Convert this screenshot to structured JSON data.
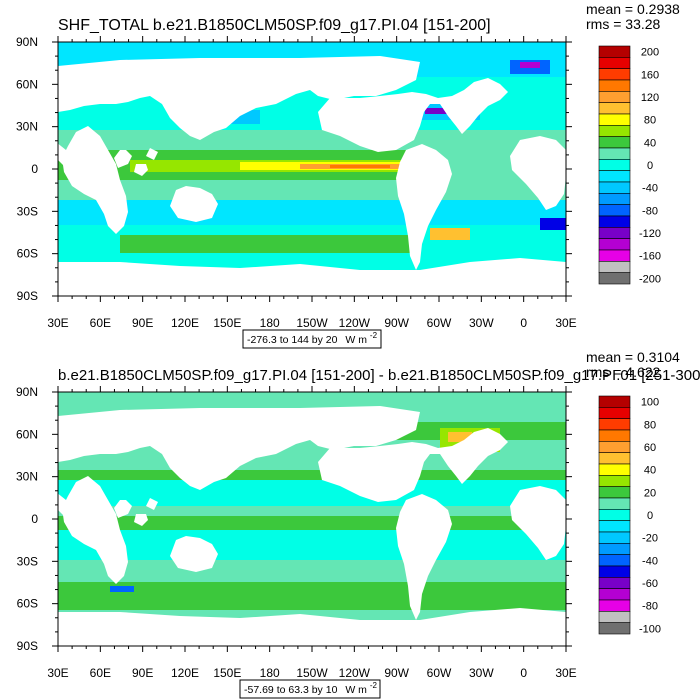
{
  "chart_data": [
    {
      "type": "heatmap",
      "title": "SHF_TOTAL b.e21.B1850CLM50SP.f09_g17.PI.04 [151-200]",
      "stats": [
        "mean = 0.2938",
        "rms = 33.28"
      ],
      "x_ticks": [
        "30E",
        "60E",
        "90E",
        "120E",
        "150E",
        "180",
        "150W",
        "120W",
        "90W",
        "60W",
        "30W",
        "0",
        "30E"
      ],
      "y_ticks": [
        "90N",
        "60N",
        "30N",
        "0",
        "30S",
        "60S",
        "90S"
      ],
      "xlim": [
        30,
        390
      ],
      "ylim": [
        -90,
        90
      ],
      "range_label": "-276.3 to 144 by 20",
      "units_label": "W m",
      "units_exponent": "-2",
      "colorbar": {
        "labels": [
          "200",
          "160",
          "120",
          "80",
          "40",
          "0",
          "-40",
          "-80",
          "-120",
          "-160",
          "-200"
        ],
        "colors": [
          "#b40000",
          "#e60000",
          "#ff3c00",
          "#ff7800",
          "#ff9f30",
          "#ffc030",
          "#ffff00",
          "#96e600",
          "#3cc83c",
          "#64e6b4",
          "#00ffe6",
          "#00e6ff",
          "#00c8ff",
          "#009bff",
          "#0064ff",
          "#0000e6",
          "#7800c8",
          "#b400d2",
          "#e600e6",
          "#c0c0c0",
          "#707070"
        ]
      }
    },
    {
      "type": "heatmap",
      "title": "b.e21.B1850CLM50SP.f09_g17.PI.04 [151-200] - b.e21.B1850CLM50SP.f09_g17.PI.01 [251-300]",
      "stats": [
        "mean = 0.3104",
        "rms = 4.622"
      ],
      "x_ticks": [
        "30E",
        "60E",
        "90E",
        "120E",
        "150E",
        "180",
        "150W",
        "120W",
        "90W",
        "60W",
        "30W",
        "0",
        "30E"
      ],
      "y_ticks": [
        "90N",
        "60N",
        "30N",
        "0",
        "30S",
        "60S",
        "90S"
      ],
      "xlim": [
        30,
        390
      ],
      "ylim": [
        -90,
        90
      ],
      "range_label": "-57.69 to 63.3 by 10",
      "units_label": "W m",
      "units_exponent": "-2",
      "colorbar": {
        "labels": [
          "100",
          "80",
          "60",
          "40",
          "20",
          "0",
          "-20",
          "-40",
          "-60",
          "-80",
          "-100"
        ],
        "colors": [
          "#b40000",
          "#e60000",
          "#ff3c00",
          "#ff7800",
          "#ff9f30",
          "#ffc030",
          "#ffff00",
          "#96e600",
          "#3cc83c",
          "#64e6b4",
          "#00ffe6",
          "#00e6ff",
          "#00c8ff",
          "#009bff",
          "#0064ff",
          "#0000e6",
          "#7800c8",
          "#b400d2",
          "#e600e6",
          "#c0c0c0",
          "#707070"
        ]
      }
    }
  ]
}
